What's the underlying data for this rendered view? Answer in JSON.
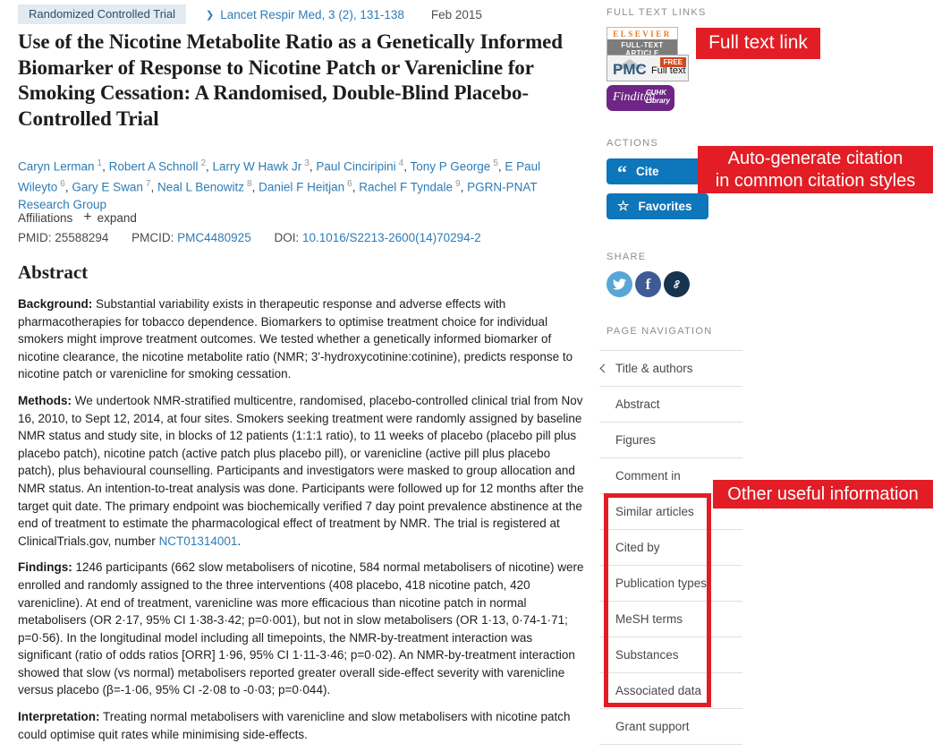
{
  "header": {
    "publication_type": "Randomized Controlled Trial",
    "journal_citation": "Lancet Respir Med, 3 (2), 131-138",
    "date": "Feb 2015"
  },
  "title": "Use of the Nicotine Metabolite Ratio as a Genetically Informed Biomarker of Response to Nicotine Patch or Varenicline for Smoking Cessation: A Randomised, Double-Blind Placebo-Controlled Trial",
  "authors": [
    {
      "name": "Caryn Lerman",
      "sup": "1"
    },
    {
      "name": "Robert A Schnoll",
      "sup": "2"
    },
    {
      "name": "Larry W Hawk Jr",
      "sup": "3"
    },
    {
      "name": "Paul Cinciripini",
      "sup": "4"
    },
    {
      "name": "Tony P George",
      "sup": "5"
    },
    {
      "name": "E Paul Wileyto",
      "sup": "6"
    },
    {
      "name": "Gary E Swan",
      "sup": "7"
    },
    {
      "name": "Neal L Benowitz",
      "sup": "8"
    },
    {
      "name": "Daniel F Heitjan",
      "sup": "6"
    },
    {
      "name": "Rachel F Tyndale",
      "sup": "9"
    },
    {
      "name": "PGRN-PNAT Research Group",
      "sup": ""
    }
  ],
  "affiliations": {
    "label": "Affiliations",
    "expand_label": "expand",
    "plus": "+"
  },
  "ids": {
    "pmid_label": "PMID:",
    "pmid_value": "25588294",
    "pmcid_label": "PMCID:",
    "pmcid_value": "PMC4480925",
    "doi_label": "DOI:",
    "doi_value": "10.1016/S2213-2600(14)70294-2"
  },
  "abstract": {
    "heading": "Abstract",
    "sections": [
      {
        "label": "Background:",
        "text": "Substantial variability exists in therapeutic response and adverse effects with pharmacotherapies for tobacco dependence. Biomarkers to optimise treatment choice for individual smokers might improve treatment outcomes. We tested whether a genetically informed biomarker of nicotine clearance, the nicotine metabolite ratio (NMR; 3'-hydroxycotinine:cotinine), predicts response to nicotine patch or varenicline for smoking cessation.",
        "link": "",
        "after_link": ""
      },
      {
        "label": "Methods:",
        "text": "We undertook NMR-stratified multicentre, randomised, placebo-controlled clinical trial from Nov 16, 2010, to Sept 12, 2014, at four sites. Smokers seeking treatment were randomly assigned by baseline NMR status and study site, in blocks of 12 patients (1:1:1 ratio), to 11 weeks of placebo (placebo pill plus placebo patch), nicotine patch (active patch plus placebo pill), or varenicline (active pill plus placebo patch), plus behavioural counselling. Participants and investigators were masked to group allocation and NMR status. An intention-to-treat analysis was done. Participants were followed up for 12 months after the target quit date. The primary endpoint was biochemically verified 7 day point prevalence abstinence at the end of treatment to estimate the pharmacological effect of treatment by NMR. The trial is registered at ClinicalTrials.gov, number ",
        "link": "NCT01314001",
        "after_link": "."
      },
      {
        "label": "Findings:",
        "text": "1246 participants (662 slow metabolisers of nicotine, 584 normal metabolisers of nicotine) were enrolled and randomly assigned to the three interventions (408 placebo, 418 nicotine patch, 420 varenicline). At end of treatment, varenicline was more efficacious than nicotine patch in normal metabolisers (OR 2·17, 95% CI 1·38-3·42; p=0·001), but not in slow metabolisers (OR 1·13, 0·74-1·71; p=0·56). In the longitudinal model including all timepoints, the NMR-by-treatment interaction was significant (ratio of odds ratios [ORR] 1·96, 95% CI 1·11-3·46; p=0·02). An NMR-by-treatment interaction showed that slow (vs normal) metabolisers reported greater overall side-effect severity with varenicline versus placebo (β=-1·06, 95% CI -2·08 to -0·03; p=0·044).",
        "link": "",
        "after_link": ""
      },
      {
        "label": "Interpretation:",
        "text": "Treating normal metabolisers with varenicline and slow metabolisers with nicotine patch could optimise quit rates while minimising side-effects.",
        "link": "",
        "after_link": ""
      }
    ]
  },
  "sidebar": {
    "full_text_links": {
      "heading": "FULL TEXT LINKS",
      "elsevier": {
        "line1": "ELSEVIER",
        "line2": "FULL-TEXT ARTICLE"
      },
      "pmc": {
        "brand": "PMC",
        "label": "Full text",
        "tag": "FREE"
      },
      "findit": {
        "script": "Findit@",
        "org1": "CUHK",
        "org2": "Library"
      }
    },
    "actions": {
      "heading": "ACTIONS",
      "cite_label": "Cite",
      "favorites_label": "Favorites",
      "button_color": "#0e76ba"
    },
    "share": {
      "heading": "SHARE",
      "icons": [
        {
          "name": "twitter",
          "color": "#57a7d6"
        },
        {
          "name": "facebook",
          "color": "#3f5b96"
        },
        {
          "name": "permalink",
          "color": "#17344f"
        }
      ]
    },
    "page_navigation": {
      "heading": "PAGE NAVIGATION",
      "items": [
        "Title & authors",
        "Abstract",
        "Figures",
        "Comment in",
        "Similar articles",
        "Cited by",
        "Publication types",
        "MeSH terms",
        "Substances",
        "Associated data",
        "Grant support"
      ]
    }
  },
  "annotations": {
    "color": "#e21d25",
    "full_text_link": "Full text link",
    "citation_line1": "Auto-generate citation",
    "citation_line2": "in common citation styles",
    "other_info": "Other useful information"
  }
}
